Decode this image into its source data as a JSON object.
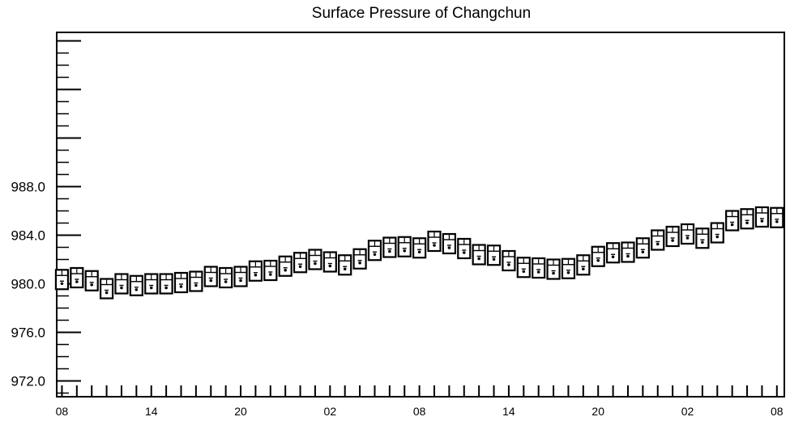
{
  "chart_data": {
    "type": "scatter",
    "title": "Surface Pressure of Changchun",
    "xlabel": "",
    "ylabel": "",
    "ylim": [
      970.7,
      1000.7
    ],
    "xlim": [
      -0.35,
      48.5
    ],
    "y_ticks": [
      "972.0",
      "976.0",
      "980.0",
      "984.0",
      "988.0"
    ],
    "y_tick_values": [
      972,
      976,
      980,
      984,
      988
    ],
    "x_tick_labels": [
      "08",
      "14",
      "20",
      "02",
      "08",
      "14",
      "20",
      "02",
      "08"
    ],
    "x_tick_positions": [
      0,
      6,
      12,
      18,
      24,
      30,
      36,
      42,
      48
    ],
    "grid": false,
    "legend": "none",
    "x": [
      0,
      1,
      2,
      3,
      4,
      5,
      6,
      7,
      8,
      9,
      10,
      11,
      12,
      13,
      14,
      15,
      16,
      17,
      18,
      19,
      20,
      21,
      22,
      23,
      24,
      25,
      26,
      27,
      28,
      29,
      30,
      31,
      32,
      33,
      34,
      35,
      36,
      37,
      38,
      39,
      40,
      41,
      42,
      43,
      44,
      45,
      46,
      47,
      48
    ],
    "series": [
      {
        "values": [
          980.35,
          980.5,
          980.25,
          979.6,
          980.0,
          979.85,
          980.0,
          980.0,
          980.1,
          980.2,
          980.6,
          980.5,
          980.6,
          981.05,
          981.1,
          981.45,
          981.75,
          982.0,
          981.8,
          981.55,
          982.05,
          982.75,
          983.0,
          983.05,
          982.95,
          983.5,
          983.3,
          982.9,
          982.4,
          982.35,
          981.9,
          981.35,
          981.3,
          981.2,
          981.25,
          981.55,
          982.25,
          982.55,
          982.6,
          982.95,
          983.6,
          983.9,
          984.1,
          983.75,
          984.2,
          985.2,
          985.35,
          985.5,
          985.45
        ]
      }
    ]
  }
}
